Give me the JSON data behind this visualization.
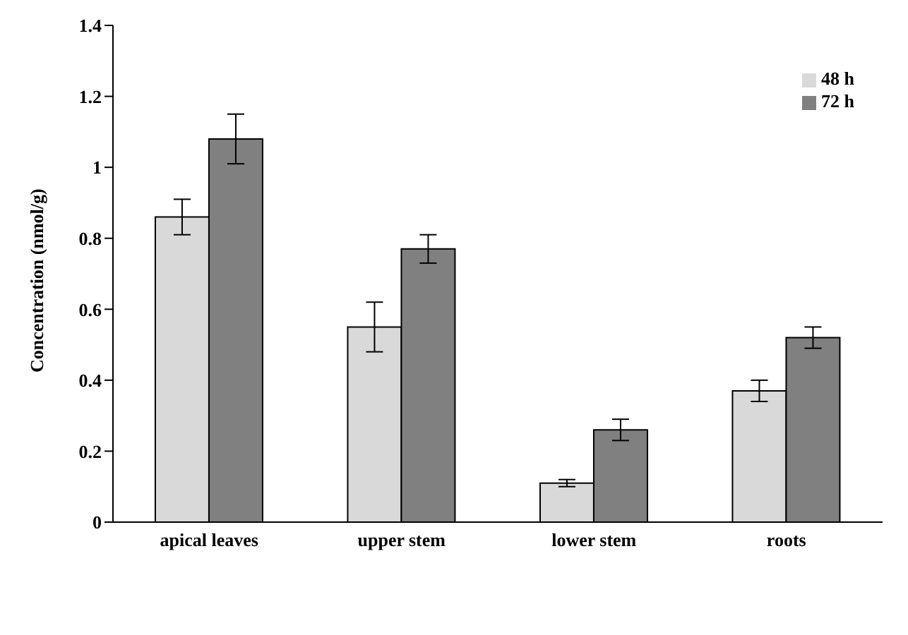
{
  "chart_data": {
    "type": "bar",
    "ylabel": "Concentration (nmol/g)",
    "categories": [
      "apical leaves",
      "upper stem",
      "lower stem",
      "roots"
    ],
    "series": [
      {
        "name": "48 h",
        "color": "#d9d9d9",
        "values": [
          0.86,
          0.55,
          0.11,
          0.37
        ],
        "errors": [
          0.05,
          0.07,
          0.01,
          0.03
        ]
      },
      {
        "name": "72 h",
        "color": "#808080",
        "values": [
          1.08,
          0.77,
          0.26,
          0.52
        ],
        "errors": [
          0.07,
          0.04,
          0.03,
          0.03
        ]
      }
    ],
    "ylim": [
      0,
      1.4
    ],
    "yticks": [
      0,
      0.2,
      0.4,
      0.6,
      0.8,
      1,
      1.2,
      1.4
    ],
    "grid": false,
    "legend": "top right"
  }
}
